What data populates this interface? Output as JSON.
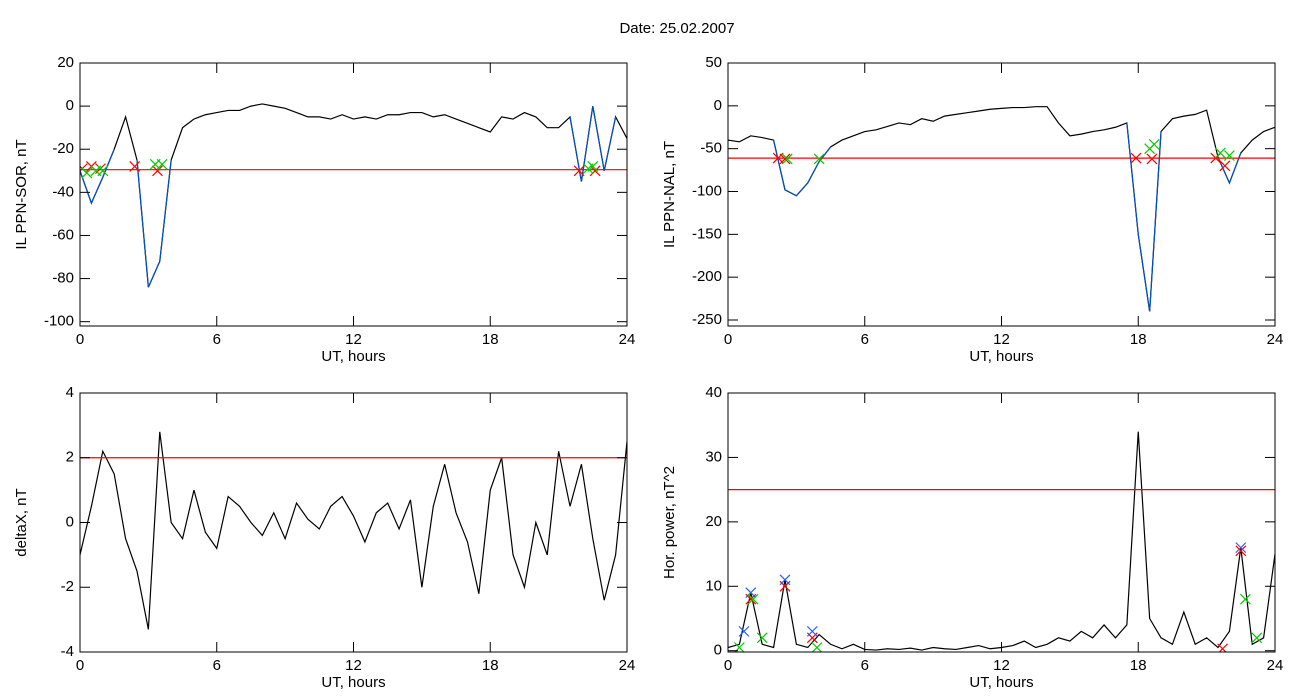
{
  "title": "Date:  25.02.2007",
  "chart_data": [
    {
      "type": "line",
      "ylabel": "IL PPN-SOR, nT",
      "xlabel": "UT, hours",
      "xlim": [
        0,
        24
      ],
      "xticks": [
        0,
        6,
        12,
        18,
        24
      ],
      "ylim": [
        -102,
        20
      ],
      "yticks": [
        -100,
        -80,
        -60,
        -40,
        -20,
        0,
        20
      ],
      "x": [
        0,
        0.5,
        1,
        1.5,
        2,
        2.5,
        3,
        3.5,
        4,
        4.5,
        5,
        5.5,
        6,
        6.5,
        7,
        7.5,
        8,
        8.5,
        9,
        9.5,
        10,
        10.5,
        11,
        11.5,
        12,
        12.5,
        13,
        13.5,
        14,
        14.5,
        15,
        15.5,
        16,
        16.5,
        17,
        17.5,
        18,
        18.5,
        19,
        19.5,
        20,
        20.5,
        21,
        21.5,
        22,
        22.5,
        23,
        23.5,
        24
      ],
      "series": [
        {
          "color": "#000000",
          "below_color": "#0050c8",
          "values": [
            -30,
            -45,
            -33,
            -20,
            -5,
            -25,
            -84,
            -72,
            -25,
            -10,
            -6,
            -4,
            -3,
            -2,
            -2,
            0,
            1,
            0,
            -1,
            -3,
            -5,
            -5,
            -6,
            -4,
            -6,
            -5,
            -6,
            -4,
            -4,
            -3,
            -3,
            -5,
            -4,
            -6,
            -8,
            -10,
            -12,
            -5,
            -6,
            -3,
            -5,
            -10,
            -10,
            -5,
            -35,
            0,
            -30,
            -5,
            -15
          ]
        }
      ],
      "threshold": -29.5,
      "threshold_color": "#ff0000",
      "markers": [
        {
          "color": "#ff0000",
          "x": [
            0.1,
            0.5,
            0.9,
            2.4,
            3.4,
            21.9,
            22.6
          ],
          "values": [
            -29,
            -28,
            -29,
            -28,
            -30,
            -30,
            -30
          ]
        },
        {
          "color": "#00cc00",
          "x": [
            0.3,
            0.7,
            1.0,
            3.3,
            3.6,
            22.3,
            22.5
          ],
          "values": [
            -31,
            -30,
            -30,
            -27,
            -27,
            -29,
            -28
          ]
        }
      ]
    },
    {
      "type": "line",
      "ylabel": "IL PPN-NAL, nT",
      "xlabel": "UT, hours",
      "xlim": [
        0,
        24
      ],
      "xticks": [
        0,
        6,
        12,
        18,
        24
      ],
      "ylim": [
        -257,
        50
      ],
      "yticks": [
        -250,
        -200,
        -150,
        -100,
        -50,
        0,
        50
      ],
      "x": [
        0,
        0.5,
        1,
        1.5,
        2,
        2.5,
        3,
        3.5,
        4,
        4.5,
        5,
        5.5,
        6,
        6.5,
        7,
        7.5,
        8,
        8.5,
        9,
        9.5,
        10,
        10.5,
        11,
        11.5,
        12,
        12.5,
        13,
        13.5,
        14,
        14.5,
        15,
        15.5,
        16,
        16.5,
        17,
        17.5,
        18,
        18.5,
        19,
        19.5,
        20,
        20.5,
        21,
        21.5,
        22,
        22.5,
        23,
        23.5,
        24
      ],
      "series": [
        {
          "color": "#000000",
          "below_color": "#0050c8",
          "values": [
            -40,
            -42,
            -35,
            -37,
            -40,
            -98,
            -105,
            -90,
            -65,
            -48,
            -40,
            -35,
            -30,
            -28,
            -24,
            -20,
            -22,
            -15,
            -18,
            -12,
            -10,
            -8,
            -6,
            -4,
            -3,
            -2,
            -2,
            -1,
            -1,
            -20,
            -35,
            -33,
            -30,
            -28,
            -25,
            -20,
            -150,
            -240,
            -30,
            -15,
            -12,
            -10,
            -5,
            -60,
            -90,
            -55,
            -40,
            -30,
            -25
          ]
        }
      ],
      "threshold": -61,
      "threshold_color": "#ff0000",
      "markers": [
        {
          "color": "#ff0000",
          "x": [
            2.2,
            2.5,
            17.9,
            18.6,
            21.4,
            21.8
          ],
          "values": [
            -61,
            -62,
            -61,
            -62,
            -61,
            -70
          ]
        },
        {
          "color": "#00cc00",
          "x": [
            2.6,
            4.0,
            18.5,
            18.7,
            21.6,
            22.0
          ],
          "values": [
            -62,
            -62,
            -50,
            -45,
            -55,
            -58
          ]
        }
      ]
    },
    {
      "type": "line",
      "ylabel": "deltaX, nT",
      "xlabel": "UT, hours",
      "xlim": [
        0,
        24
      ],
      "xticks": [
        0,
        6,
        12,
        18,
        24
      ],
      "ylim": [
        -4,
        4
      ],
      "yticks": [
        -4,
        -2,
        0,
        2,
        4
      ],
      "x": [
        0,
        0.5,
        1,
        1.5,
        2,
        2.5,
        3,
        3.5,
        4,
        4.5,
        5,
        5.5,
        6,
        6.5,
        7,
        7.5,
        8,
        8.5,
        9,
        9.5,
        10,
        10.5,
        11,
        11.5,
        12,
        12.5,
        13,
        13.5,
        14,
        14.5,
        15,
        15.5,
        16,
        16.5,
        17,
        17.5,
        18,
        18.5,
        19,
        19.5,
        20,
        20.5,
        21,
        21.5,
        22,
        22.5,
        23,
        23.5,
        24
      ],
      "series": [
        {
          "color": "#000000",
          "values": [
            -1,
            0.5,
            2.2,
            1.5,
            -0.5,
            -1.5,
            -3.3,
            2.8,
            0,
            -0.5,
            1,
            -0.3,
            -0.8,
            0.8,
            0.5,
            0,
            -0.4,
            0.3,
            -0.5,
            0.6,
            0.1,
            -0.2,
            0.5,
            0.8,
            0.2,
            -0.6,
            0.3,
            0.6,
            -0.2,
            0.7,
            -2,
            0.5,
            1.8,
            0.3,
            -0.6,
            -2.2,
            1,
            2,
            -1,
            -2,
            0,
            -1,
            2.2,
            0.5,
            1.8,
            -0.5,
            -2.4,
            -1,
            2.5
          ]
        }
      ],
      "threshold": 2,
      "threshold_color": "#ff0000"
    },
    {
      "type": "line",
      "ylabel": "Hor. power, nT^2",
      "xlabel": "UT, hours",
      "xlim": [
        0,
        24
      ],
      "xticks": [
        0,
        6,
        12,
        18,
        24
      ],
      "ylim": [
        -0.2,
        40
      ],
      "yticks": [
        0,
        10,
        20,
        30,
        40
      ],
      "x": [
        0,
        0.5,
        1,
        1.5,
        2,
        2.5,
        3,
        3.5,
        4,
        4.5,
        5,
        5.5,
        6,
        6.5,
        7,
        7.5,
        8,
        8.5,
        9,
        9.5,
        10,
        10.5,
        11,
        11.5,
        12,
        12.5,
        13,
        13.5,
        14,
        14.5,
        15,
        15.5,
        16,
        16.5,
        17,
        17.5,
        18,
        18.5,
        19,
        19.5,
        20,
        20.5,
        21,
        21.5,
        22,
        22.5,
        23,
        23.5,
        24
      ],
      "series": [
        {
          "color": "#000000",
          "values": [
            0.5,
            1,
            9,
            1,
            0.5,
            11,
            1,
            0.5,
            2.5,
            1,
            0.3,
            1,
            0.2,
            0.1,
            0.3,
            0.2,
            0.4,
            0.1,
            0.5,
            0.3,
            0.2,
            0.5,
            0.8,
            0.3,
            0.5,
            0.8,
            1.5,
            0.5,
            1,
            2,
            1.5,
            3,
            2,
            4,
            2,
            4,
            34,
            5,
            2,
            1,
            6,
            1,
            2,
            0.5,
            3,
            16,
            1,
            2,
            15
          ]
        }
      ],
      "threshold": 25,
      "threshold_color": "#ff0000",
      "markers": [
        {
          "color": "#ff0000",
          "x": [
            1.0,
            2.5,
            3.7,
            21.7,
            22.5
          ],
          "values": [
            8,
            10,
            2,
            0.3,
            15.5
          ]
        },
        {
          "color": "#2060ff",
          "x": [
            0.7,
            1.0,
            2.5,
            3.7,
            22.5
          ],
          "values": [
            3,
            9,
            11,
            3,
            16
          ]
        },
        {
          "color": "#00cc00",
          "x": [
            0.5,
            1.1,
            1.5,
            3.9,
            22.7,
            23.2
          ],
          "values": [
            0.5,
            8,
            2,
            0.5,
            8,
            2
          ]
        }
      ]
    }
  ]
}
